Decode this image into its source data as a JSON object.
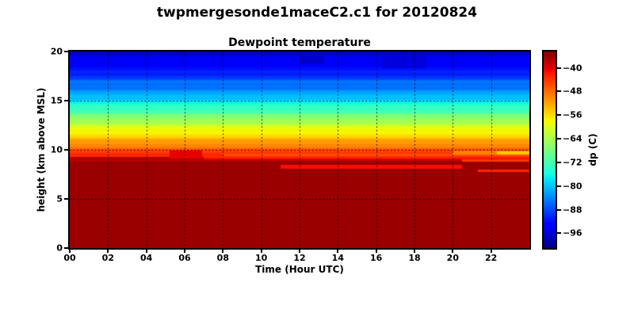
{
  "figure": {
    "title": "twpmergesonde1maceC2.c1 for 20120824",
    "background": "#ffffff",
    "frame_color": "#000000",
    "text_color": "#000000"
  },
  "chart_data": {
    "type": "heatmap",
    "title": "Dewpoint temperature",
    "xlabel": "Time (Hour UTC)",
    "ylabel": "height (km above MSL)",
    "x_range_hours": [
      0,
      24
    ],
    "y_range_km": [
      0,
      20
    ],
    "xticks": [
      {
        "v": 0,
        "label": "00"
      },
      {
        "v": 2,
        "label": "02"
      },
      {
        "v": 4,
        "label": "04"
      },
      {
        "v": 6,
        "label": "06"
      },
      {
        "v": 8,
        "label": "08"
      },
      {
        "v": 10,
        "label": "10"
      },
      {
        "v": 12,
        "label": "12"
      },
      {
        "v": 14,
        "label": "14"
      },
      {
        "v": 16,
        "label": "16"
      },
      {
        "v": 18,
        "label": "18"
      },
      {
        "v": 20,
        "label": "20"
      },
      {
        "v": 22,
        "label": "22"
      }
    ],
    "yticks": [
      {
        "v": 0,
        "label": "0"
      },
      {
        "v": 5,
        "label": "5"
      },
      {
        "v": 10,
        "label": "10"
      },
      {
        "v": 15,
        "label": "15"
      },
      {
        "v": 20,
        "label": "20"
      }
    ],
    "grid": {
      "x_hours": [
        2,
        4,
        6,
        8,
        10,
        12,
        14,
        16,
        18,
        20,
        22
      ],
      "y_km": [
        5,
        10,
        15
      ],
      "style": "dotted",
      "color": "#000000"
    },
    "colormap": "jet",
    "scale": {
      "vmin": -101,
      "vmax": -34.5
    },
    "colorbar": {
      "label": "dp (C)",
      "ticks": [
        {
          "v": -40,
          "label": "−40"
        },
        {
          "v": -48,
          "label": "−48"
        },
        {
          "v": -56,
          "label": "−56"
        },
        {
          "v": -64,
          "label": "−64"
        },
        {
          "v": -72,
          "label": "−72"
        },
        {
          "v": -80,
          "label": "−80"
        },
        {
          "v": -88,
          "label": "−88"
        },
        {
          "v": -96,
          "label": "−96"
        }
      ]
    },
    "profile_height_km_vs_dp_C": [
      [
        0,
        -36
      ],
      [
        8.75,
        -36
      ],
      [
        8.95,
        -38.5
      ],
      [
        9.15,
        -41.5
      ],
      [
        9.5,
        -43.5
      ],
      [
        10,
        -46.5
      ],
      [
        10.5,
        -50
      ],
      [
        11,
        -53
      ],
      [
        11.5,
        -56
      ],
      [
        12,
        -58.5
      ],
      [
        12.5,
        -61.5
      ],
      [
        13,
        -65
      ],
      [
        13.5,
        -68.5
      ],
      [
        14,
        -72
      ],
      [
        14.5,
        -75
      ],
      [
        15,
        -78
      ],
      [
        15.5,
        -81
      ],
      [
        16,
        -83.5
      ],
      [
        16.6,
        -85.5
      ],
      [
        16.9,
        -85.8
      ],
      [
        17.3,
        -88.5
      ],
      [
        18,
        -91.5
      ],
      [
        18.6,
        -93
      ],
      [
        19.2,
        -94.5
      ],
      [
        19.6,
        -95.5
      ],
      [
        20,
        -97.5
      ]
    ],
    "anomalies": [
      {
        "hours": [
          0,
          7
        ],
        "z": [
          8.95,
          9.3
        ],
        "dp": -37.5
      },
      {
        "hours": [
          5.2,
          6.9
        ],
        "z": [
          9.1,
          9.95
        ],
        "dp": -40.5
      },
      {
        "hours": [
          8,
          24
        ],
        "z": [
          9.35,
          9.6
        ],
        "dp": -46
      },
      {
        "hours": [
          11,
          20.5
        ],
        "z": [
          8.05,
          8.5
        ],
        "dp": -41.5
      },
      {
        "hours": [
          20,
          24
        ],
        "z": [
          9.5,
          9.95
        ],
        "dp": -49.5
      },
      {
        "hours": [
          22.3,
          24
        ],
        "z": [
          9.55,
          9.85
        ],
        "dp": -54.5
      },
      {
        "hours": [
          20.5,
          24
        ],
        "z": [
          8.8,
          9.05
        ],
        "dp": -44.5
      },
      {
        "hours": [
          21.3,
          24
        ],
        "z": [
          7.75,
          8.02
        ],
        "dp": -43
      },
      {
        "hours": [
          12,
          13.3
        ],
        "z": [
          18.7,
          19.9
        ],
        "dp": -96.5
      },
      {
        "hours": [
          16.3,
          18.6
        ],
        "z": [
          18.3,
          19.5
        ],
        "dp": -95.5
      }
    ],
    "banding_texture": {
      "amp1": 0.8,
      "freq1": 5.3,
      "amp2": 0.5,
      "freq2": 12.7,
      "min_z": 8.9
    }
  }
}
